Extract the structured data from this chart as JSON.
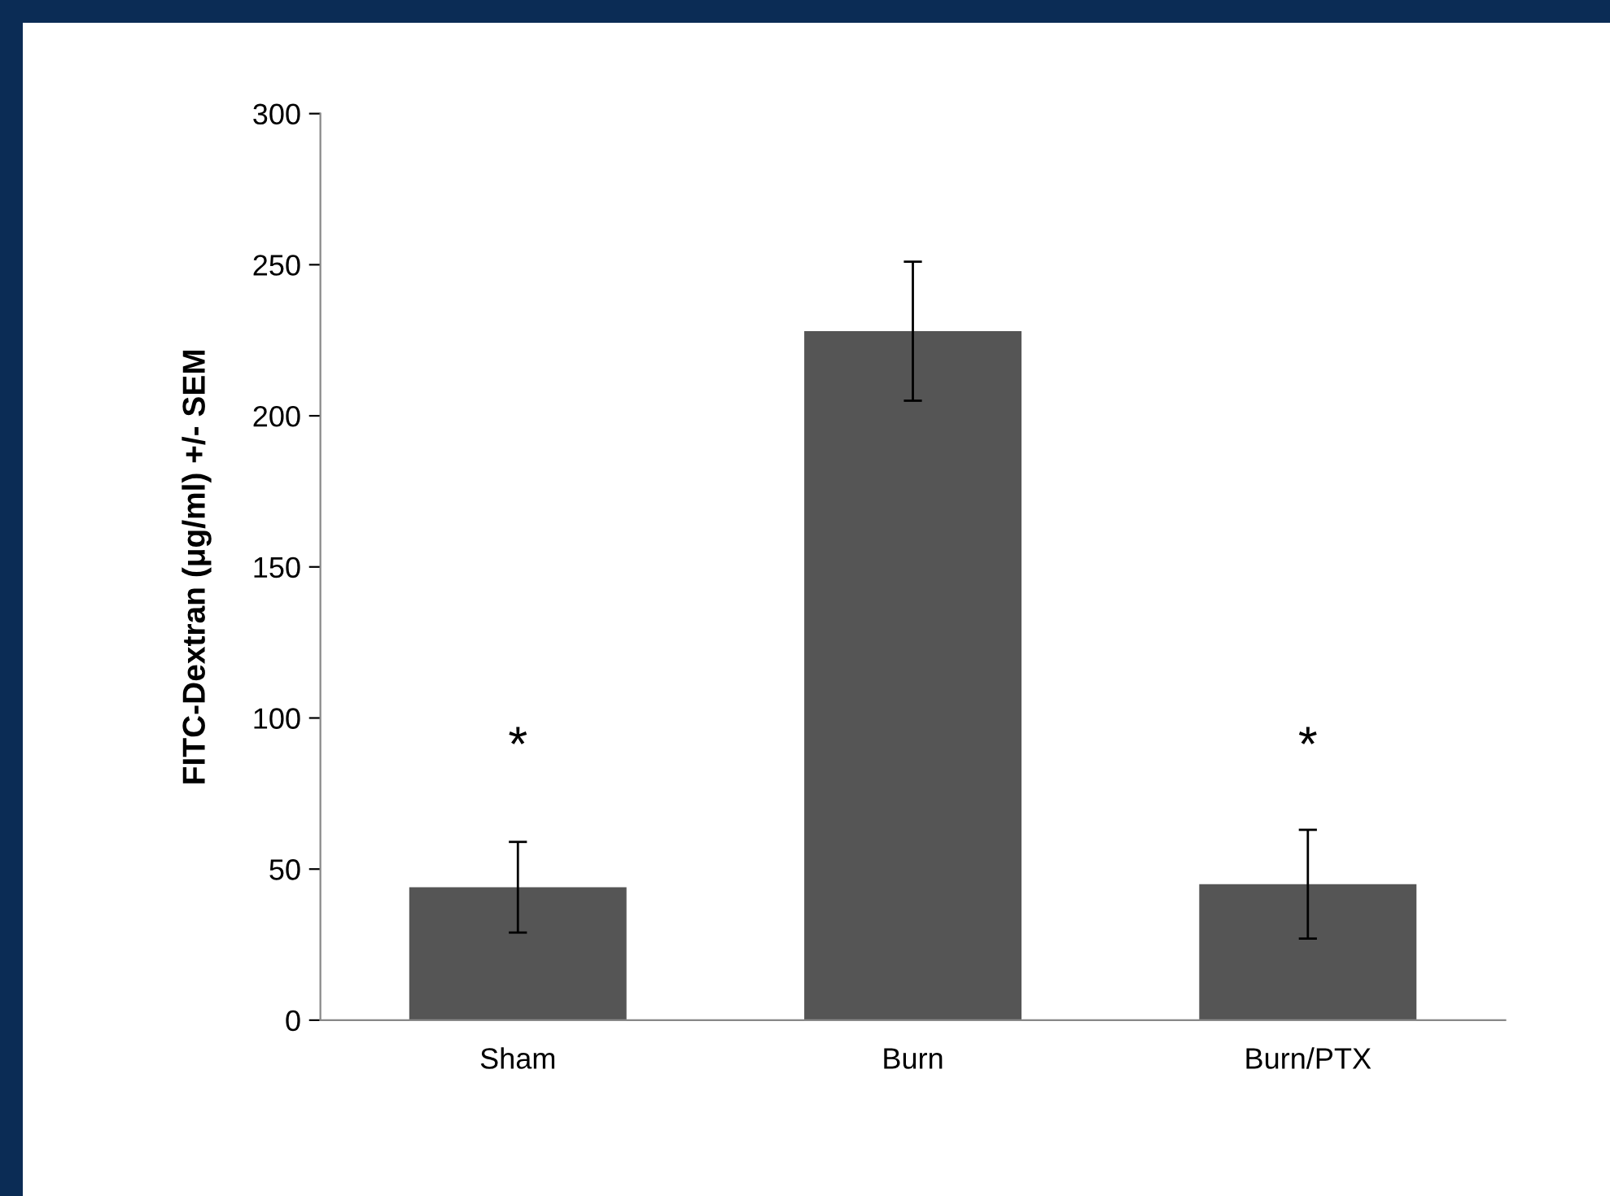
{
  "chart_data": {
    "type": "bar",
    "ylabel": "FITC-Dextran (μg/ml) +/- SEM",
    "categories": [
      "Sham",
      "Burn",
      "Burn/PTX"
    ],
    "values": [
      44,
      228,
      45
    ],
    "errors": [
      15,
      23,
      18
    ],
    "color": "#555555",
    "ylim": [
      0,
      300
    ],
    "yticks": [
      0,
      50,
      100,
      150,
      200,
      250,
      300
    ],
    "grid": false,
    "annotations": [
      "*",
      "*"
    ]
  }
}
